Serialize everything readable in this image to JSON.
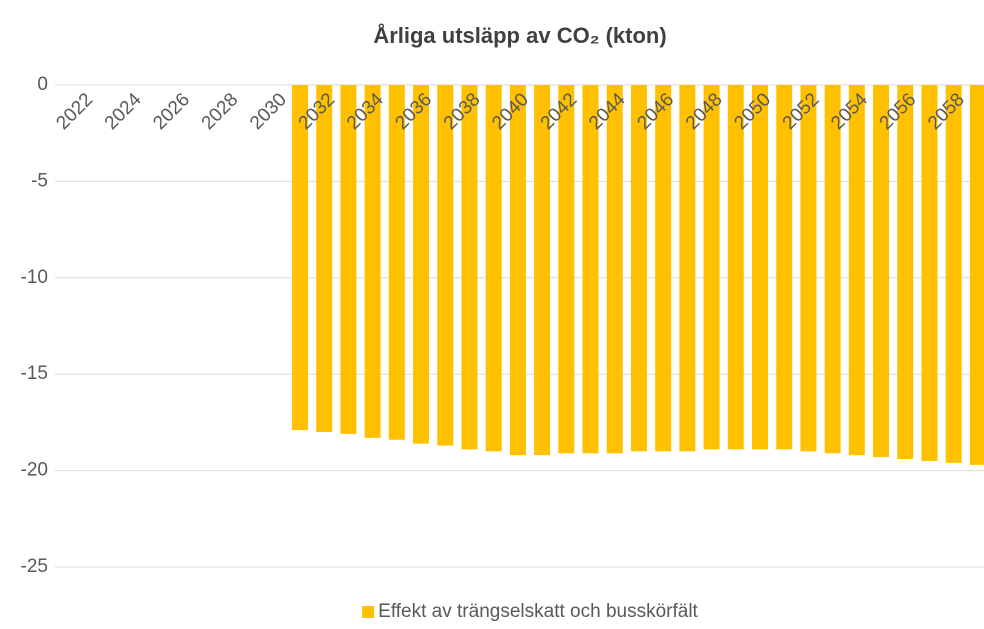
{
  "chart_data": {
    "type": "bar",
    "title": "Årliga utsläpp av CO₂ (kton)",
    "categories": [
      "2022",
      null,
      "2024",
      null,
      "2026",
      null,
      "2028",
      null,
      "2030",
      null,
      "2032",
      null,
      "2034",
      null,
      "2036",
      null,
      "2038",
      null,
      "2040",
      null,
      "2042",
      null,
      "2044",
      null,
      "2046",
      null,
      "2048",
      null,
      "2050",
      null,
      "2052",
      null,
      "2054",
      null,
      "2056",
      null,
      "2058",
      null
    ],
    "series": [
      {
        "name": "Effekt av trängselskatt och busskörfält",
        "color": "#ffc000",
        "values": [
          null,
          null,
          null,
          null,
          null,
          null,
          null,
          null,
          null,
          -17.9,
          -18.0,
          -18.1,
          -18.3,
          -18.4,
          -18.6,
          -18.7,
          -18.9,
          -19.0,
          -19.2,
          -19.2,
          -19.1,
          -19.1,
          -19.1,
          -19.0,
          -19.0,
          -19.0,
          -18.9,
          -18.9,
          -18.9,
          -18.9,
          -19.0,
          -19.1,
          -19.2,
          -19.3,
          -19.4,
          -19.5,
          -19.6,
          -19.7
        ]
      }
    ],
    "ylim": [
      -25,
      0
    ],
    "yticks": [
      0,
      -5,
      -10,
      -15,
      -20,
      -25
    ],
    "grid": true,
    "legend": "bottom"
  }
}
